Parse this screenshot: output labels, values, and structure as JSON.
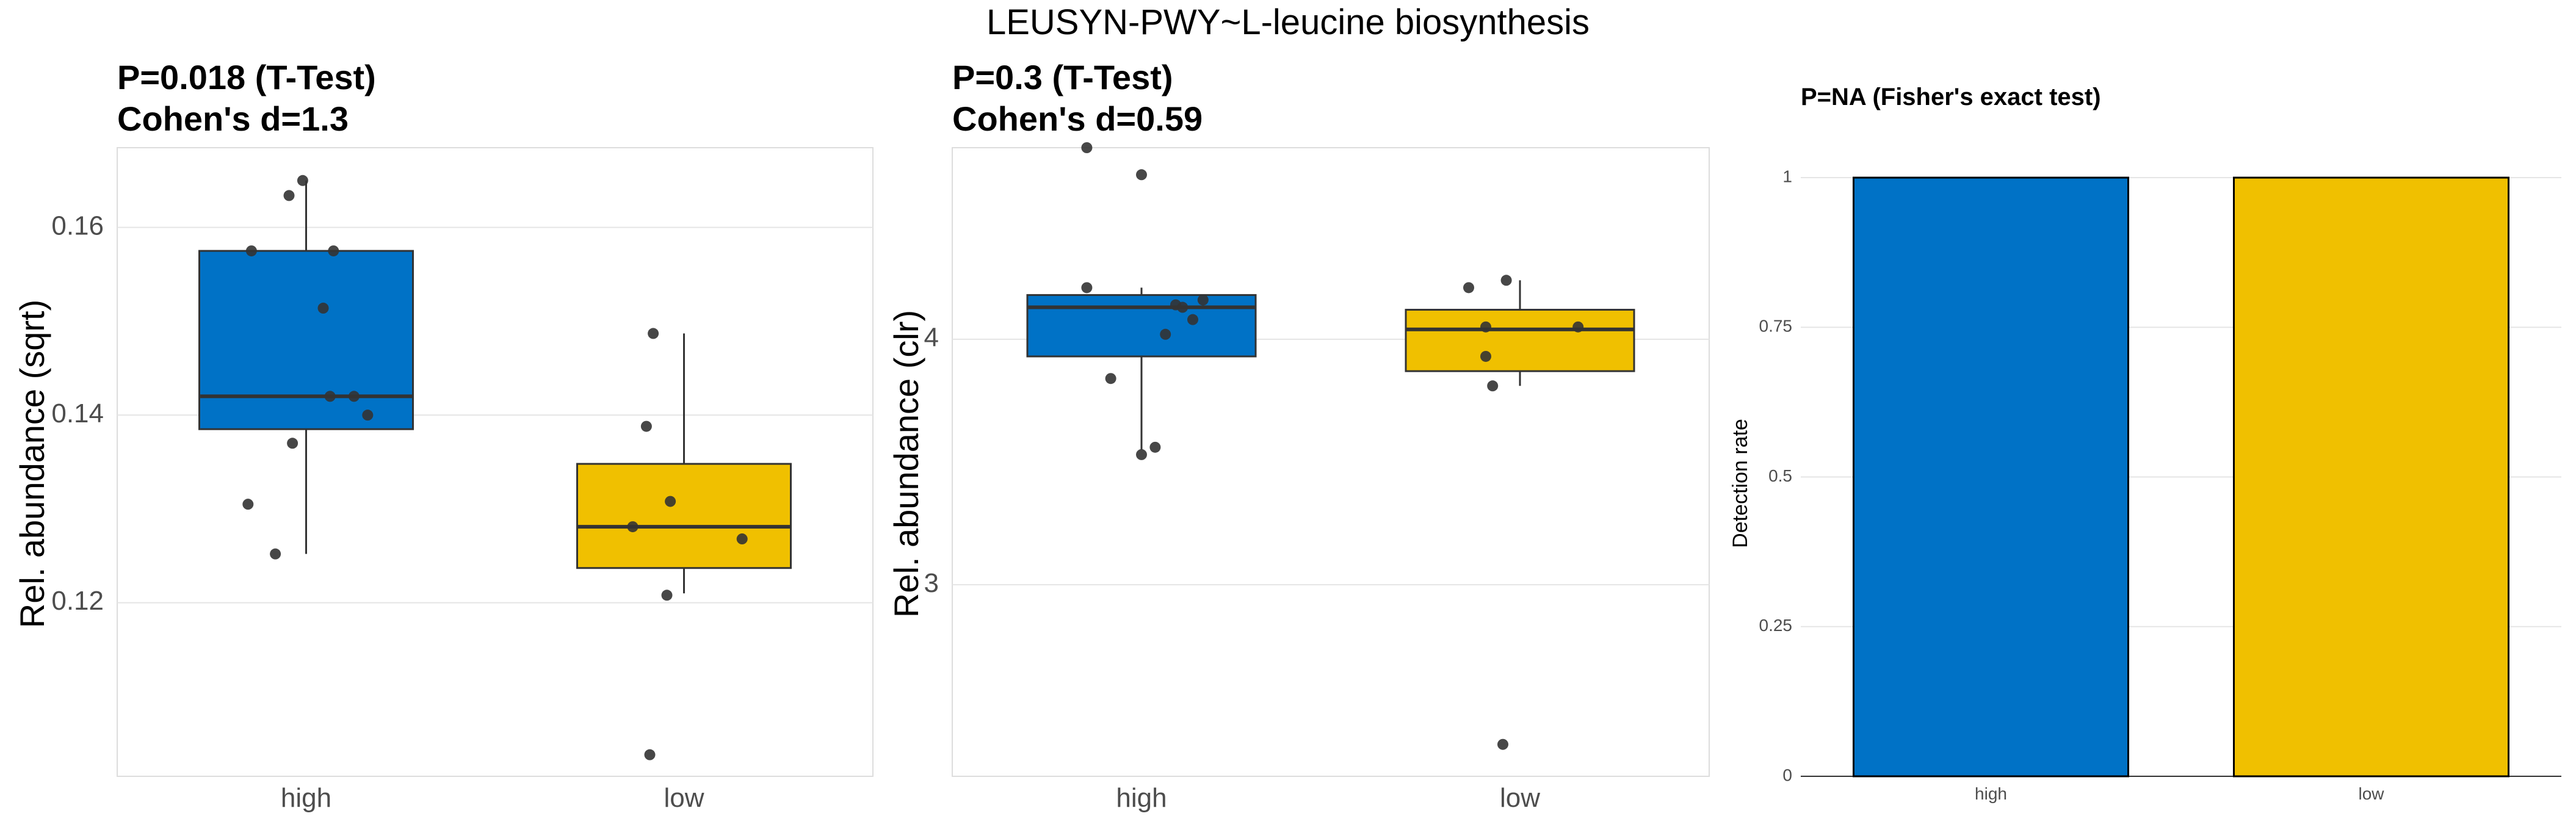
{
  "figure": {
    "title": "LEUSYN-PWY~L-leucine biosynthesis"
  },
  "colors": {
    "high": "#0072C6",
    "low": "#F0C000",
    "point": "#333333",
    "grid": "#E5E5E5",
    "panel_border": "#DDDDDD"
  },
  "chart_data": [
    {
      "type": "box",
      "title_lines": [
        "P=0.018 (T-Test)",
        "Cohen's d=1.3"
      ],
      "xlabel": "",
      "ylabel": "Rel. abundance (sqrt)",
      "categories": [
        "high",
        "low"
      ],
      "ylim": [
        0.1015,
        0.1685
      ],
      "yticks": [
        0.12,
        0.14,
        0.16
      ],
      "ytick_labels": [
        "0.12",
        "0.14",
        "0.16"
      ],
      "grid": true,
      "boxes": [
        {
          "category": "high",
          "whisker_low": 0.1252,
          "q1": 0.1385,
          "median": 0.142,
          "q3": 0.1575,
          "whisker_high": 0.165
        },
        {
          "category": "low",
          "whisker_low": 0.121,
          "q1": 0.1237,
          "median": 0.1281,
          "q3": 0.1348,
          "whisker_high": 0.1487
        }
      ],
      "points": [
        {
          "category": "high",
          "jitter": -0.01,
          "y": 0.165
        },
        {
          "category": "high",
          "jitter": -0.05,
          "y": 0.1634
        },
        {
          "category": "high",
          "jitter": -0.16,
          "y": 0.1575
        },
        {
          "category": "high",
          "jitter": 0.08,
          "y": 0.1575
        },
        {
          "category": "high",
          "jitter": 0.05,
          "y": 0.1514
        },
        {
          "category": "high",
          "jitter": 0.07,
          "y": 0.142
        },
        {
          "category": "high",
          "jitter": 0.14,
          "y": 0.142
        },
        {
          "category": "high",
          "jitter": 0.18,
          "y": 0.14
        },
        {
          "category": "high",
          "jitter": -0.04,
          "y": 0.137
        },
        {
          "category": "high",
          "jitter": -0.17,
          "y": 0.1305
        },
        {
          "category": "high",
          "jitter": -0.09,
          "y": 0.1252
        },
        {
          "category": "low",
          "jitter": -0.09,
          "y": 0.1487
        },
        {
          "category": "low",
          "jitter": -0.11,
          "y": 0.1388
        },
        {
          "category": "low",
          "jitter": -0.04,
          "y": 0.1308
        },
        {
          "category": "low",
          "jitter": -0.15,
          "y": 0.1281
        },
        {
          "category": "low",
          "jitter": 0.17,
          "y": 0.1268
        },
        {
          "category": "low",
          "jitter": -0.05,
          "y": 0.1208
        },
        {
          "category": "low",
          "jitter": -0.1,
          "y": 0.1038
        }
      ]
    },
    {
      "type": "box",
      "title_lines": [
        "P=0.3 (T-Test)",
        "Cohen's d=0.59"
      ],
      "xlabel": "",
      "ylabel": "Rel. abundance (clr)",
      "categories": [
        "high",
        "low"
      ],
      "ylim": [
        2.22,
        4.78
      ],
      "yticks": [
        3,
        4
      ],
      "ytick_labels": [
        "3",
        "4"
      ],
      "grid": true,
      "boxes": [
        {
          "category": "high",
          "whisker_low": 3.55,
          "q1": 3.93,
          "median": 4.13,
          "q3": 4.18,
          "whisker_high": 4.21
        },
        {
          "category": "low",
          "whisker_low": 3.81,
          "q1": 3.87,
          "median": 4.04,
          "q3": 4.12,
          "whisker_high": 4.24
        }
      ],
      "points": [
        {
          "category": "high",
          "jitter": -0.16,
          "y": 4.78
        },
        {
          "category": "high",
          "jitter": 0.0,
          "y": 4.67
        },
        {
          "category": "high",
          "jitter": -0.16,
          "y": 4.21
        },
        {
          "category": "high",
          "jitter": 0.18,
          "y": 4.16
        },
        {
          "category": "high",
          "jitter": 0.1,
          "y": 4.14
        },
        {
          "category": "high",
          "jitter": 0.12,
          "y": 4.13
        },
        {
          "category": "high",
          "jitter": 0.15,
          "y": 4.08
        },
        {
          "category": "high",
          "jitter": 0.07,
          "y": 4.02
        },
        {
          "category": "high",
          "jitter": -0.09,
          "y": 3.84
        },
        {
          "category": "high",
          "jitter": 0.04,
          "y": 3.56
        },
        {
          "category": "high",
          "jitter": 0.0,
          "y": 3.53
        },
        {
          "category": "low",
          "jitter": -0.15,
          "y": 4.21
        },
        {
          "category": "low",
          "jitter": -0.04,
          "y": 4.24
        },
        {
          "category": "low",
          "jitter": -0.1,
          "y": 4.05
        },
        {
          "category": "low",
          "jitter": 0.17,
          "y": 4.05
        },
        {
          "category": "low",
          "jitter": -0.1,
          "y": 3.93
        },
        {
          "category": "low",
          "jitter": -0.08,
          "y": 3.81
        },
        {
          "category": "low",
          "jitter": -0.05,
          "y": 2.35
        }
      ]
    },
    {
      "type": "bar",
      "title_lines": [
        "P=NA (Fisher's exact test)"
      ],
      "xlabel": "",
      "ylabel": "Detection rate",
      "categories": [
        "high",
        "low"
      ],
      "values": [
        1,
        1
      ],
      "ylim": [
        0,
        1.05
      ],
      "yticks": [
        0,
        0.25,
        0.5,
        0.75,
        1
      ],
      "ytick_labels": [
        "0",
        "0.25",
        "0.5",
        "0.75",
        "1"
      ],
      "grid": true
    }
  ]
}
